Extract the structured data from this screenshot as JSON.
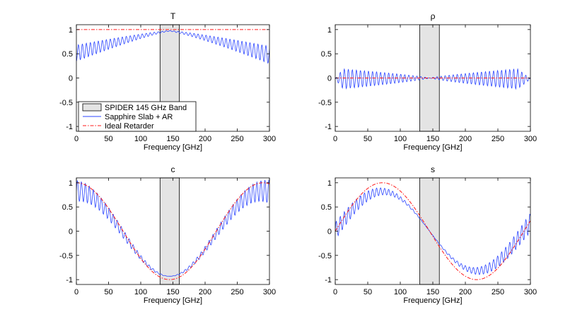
{
  "figure_description_title": "",
  "colors": {
    "band_fill": "#e4e4e4",
    "slab": "#2b45ff",
    "ideal": "#ff1a1a",
    "axes": "#000000"
  },
  "legend": {
    "entries": [
      {
        "label": "SPIDER 145 GHz Band",
        "kind": "patch"
      },
      {
        "label": "Sapphire Slab + AR",
        "kind": "solid"
      },
      {
        "label": "Ideal Retarder",
        "kind": "dashdot"
      }
    ]
  },
  "chart_data": [
    {
      "id": "T",
      "type": "line",
      "title": "T",
      "xlabel": "Frequency [GHz]",
      "ylabel": "",
      "xlim": [
        0,
        300
      ],
      "ylim": [
        -1.1,
        1.1
      ],
      "xticks": [
        "0",
        "50",
        "100",
        "150",
        "200",
        "250",
        "300"
      ],
      "yticks": [
        "-1",
        "-0.5",
        "0",
        "0.5",
        "1"
      ],
      "band": [
        130,
        160
      ],
      "series": [
        {
          "name": "Sapphire Slab + AR",
          "style": "solid",
          "model": "transmission",
          "base": [
            0.15,
            0.35,
            0.85
          ],
          "osc_amp": 0.32,
          "osc_period": 6.2
        },
        {
          "name": "Ideal Retarder",
          "style": "dashdot",
          "model": "constant",
          "value": 1.0
        }
      ]
    },
    {
      "id": "rho",
      "type": "line",
      "title": "ρ",
      "xlabel": "Frequency [GHz]",
      "ylabel": "",
      "xlim": [
        0,
        300
      ],
      "ylim": [
        -1.1,
        1.1
      ],
      "xticks": [
        "0",
        "50",
        "100",
        "150",
        "200",
        "250",
        "300"
      ],
      "yticks": [
        "-1",
        "-0.5",
        "0",
        "0.5",
        "1"
      ],
      "band": [
        130,
        160
      ],
      "series": [
        {
          "name": "Sapphire Slab + AR",
          "style": "solid",
          "model": "rho",
          "osc_amp": 0.22,
          "osc_period": 6.2
        },
        {
          "name": "Ideal Retarder",
          "style": "dashdot",
          "model": "constant",
          "value": 0.0
        }
      ]
    },
    {
      "id": "c",
      "type": "line",
      "title": "c",
      "xlabel": "Frequency [GHz]",
      "ylabel": "",
      "xlim": [
        0,
        300
      ],
      "ylim": [
        -1.1,
        1.1
      ],
      "xticks": [
        "0",
        "50",
        "100",
        "150",
        "200",
        "250",
        "300"
      ],
      "yticks": [
        "-1",
        "-0.5",
        "0",
        "0.5",
        "1"
      ],
      "band": [
        130,
        160
      ],
      "series": [
        {
          "name": "Sapphire Slab + AR",
          "style": "solid",
          "model": "cos_osc",
          "half_period_ghz": 145,
          "osc_amp": 0.22,
          "osc_period": 6.2
        },
        {
          "name": "Ideal Retarder",
          "style": "dashdot",
          "model": "cos",
          "half_period_ghz": 145
        }
      ]
    },
    {
      "id": "s",
      "type": "line",
      "title": "s",
      "xlabel": "Frequency [GHz]",
      "ylabel": "",
      "xlim": [
        0,
        300
      ],
      "ylim": [
        -1.1,
        1.1
      ],
      "xticks": [
        "0",
        "50",
        "100",
        "150",
        "200",
        "250",
        "300"
      ],
      "yticks": [
        "-1",
        "-0.5",
        "0",
        "0.5",
        "1"
      ],
      "band": [
        130,
        160
      ],
      "series": [
        {
          "name": "Sapphire Slab + AR",
          "style": "solid",
          "model": "sin_osc",
          "half_period_ghz": 145,
          "osc_amp": 0.18,
          "osc_period": 6.2
        },
        {
          "name": "Ideal Retarder",
          "style": "dashdot",
          "model": "sin",
          "half_period_ghz": 145
        }
      ]
    }
  ]
}
